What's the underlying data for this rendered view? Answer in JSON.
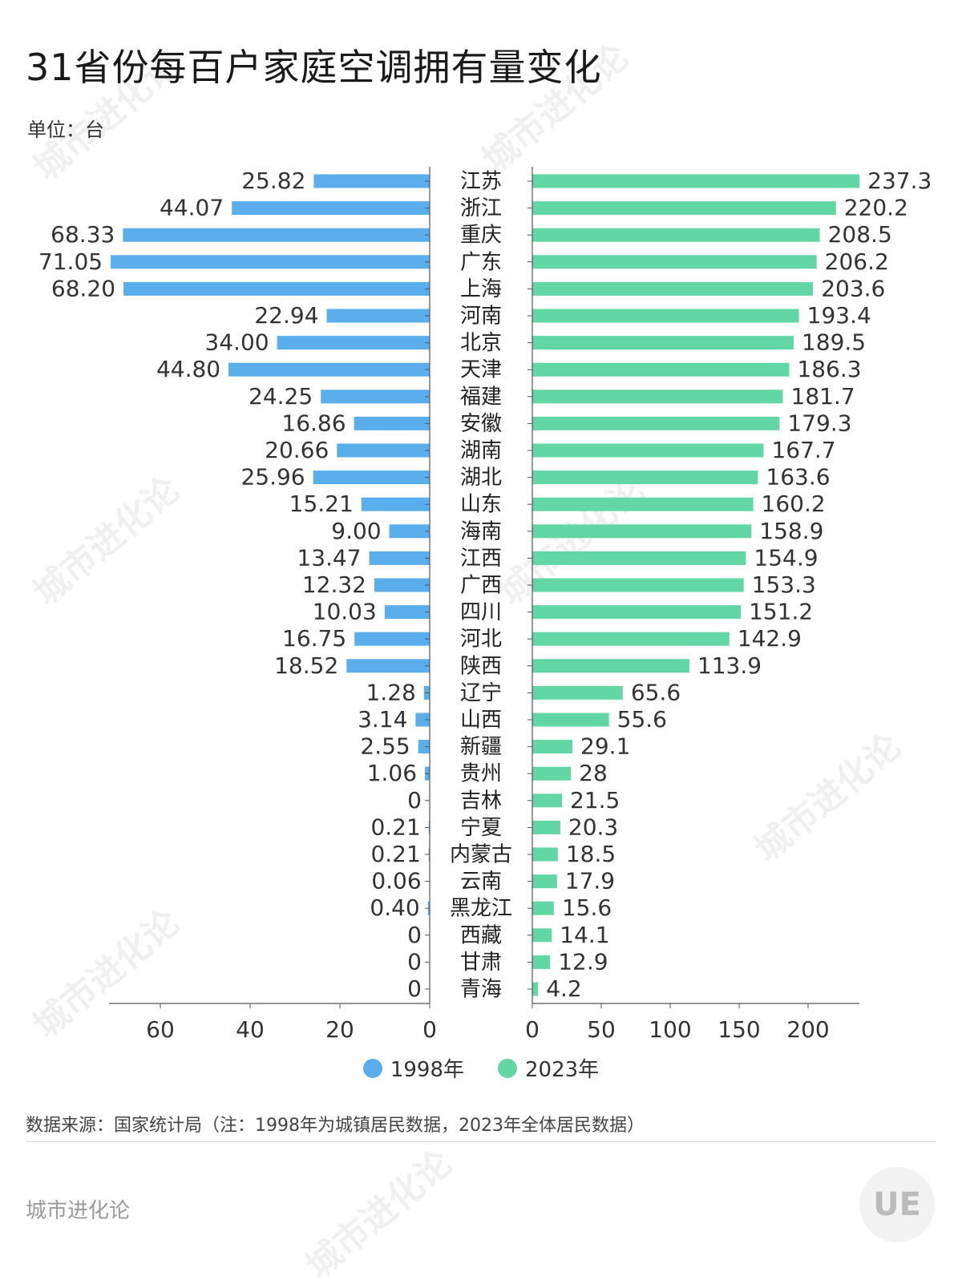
{
  "title": "31省份每百户家庭空调拥有量变化",
  "unit": "单位：台",
  "source": "数据来源：国家统计局（注：1998年为城镇居民数据，2023年全体居民数据）",
  "footer": "城市进化论",
  "watermark": "城市进化论",
  "colors": {
    "s1998": "#5aaeec",
    "s2023": "#63d6a5"
  },
  "legend": {
    "s1998": "1998年",
    "s2023": "2023年"
  },
  "chart_data": {
    "type": "bar",
    "categories": [
      "江苏",
      "浙江",
      "重庆",
      "广东",
      "上海",
      "河南",
      "北京",
      "天津",
      "福建",
      "安徽",
      "湖南",
      "湖北",
      "山东",
      "海南",
      "江西",
      "广西",
      "四川",
      "河北",
      "陕西",
      "辽宁",
      "山西",
      "新疆",
      "贵州",
      "吉林",
      "宁夏",
      "内蒙古",
      "云南",
      "黑龙江",
      "西藏",
      "甘肃",
      "青海"
    ],
    "series": [
      {
        "name": "1998年",
        "values": [
          25.82,
          44.07,
          68.33,
          71.05,
          68.2,
          22.94,
          34.0,
          44.8,
          24.25,
          16.86,
          20.66,
          25.96,
          15.21,
          9.0,
          13.47,
          12.32,
          10.03,
          16.75,
          18.52,
          1.28,
          3.14,
          2.55,
          1.06,
          0,
          0.21,
          0.21,
          0.06,
          0.4,
          0,
          0,
          0
        ],
        "labels": [
          "25.82",
          "44.07",
          "68.33",
          "71.05",
          "68.20",
          "22.94",
          "34.00",
          "44.80",
          "24.25",
          "16.86",
          "20.66",
          "25.96",
          "15.21",
          "9.00",
          "13.47",
          "12.32",
          "10.03",
          "16.75",
          "18.52",
          "1.28",
          "3.14",
          "2.55",
          "1.06",
          "0",
          "0.21",
          "0.21",
          "0.06",
          "0.40",
          "0",
          "0",
          "0"
        ]
      },
      {
        "name": "2023年",
        "values": [
          237.3,
          220.2,
          208.5,
          206.2,
          203.6,
          193.4,
          189.5,
          186.3,
          181.7,
          179.3,
          167.7,
          163.6,
          160.2,
          158.9,
          154.9,
          153.3,
          151.2,
          142.9,
          113.9,
          65.6,
          55.6,
          29.1,
          28,
          21.5,
          20.3,
          18.5,
          17.9,
          15.6,
          14.1,
          12.9,
          4.2
        ],
        "labels": [
          "237.3",
          "220.2",
          "208.5",
          "206.2",
          "203.6",
          "193.4",
          "189.5",
          "186.3",
          "181.7",
          "179.3",
          "167.7",
          "163.6",
          "160.2",
          "158.9",
          "154.9",
          "153.3",
          "151.2",
          "142.9",
          "113.9",
          "65.6",
          "55.6",
          "29.1",
          "28",
          "21.5",
          "20.3",
          "18.5",
          "17.9",
          "15.6",
          "14.1",
          "12.9",
          "4.2"
        ]
      }
    ],
    "left_axis": {
      "ticks": [
        60,
        40,
        20,
        0
      ],
      "range": [
        0,
        71.05
      ]
    },
    "right_axis": {
      "ticks": [
        0,
        50,
        100,
        150,
        200
      ],
      "range": [
        0,
        237.3
      ]
    }
  }
}
